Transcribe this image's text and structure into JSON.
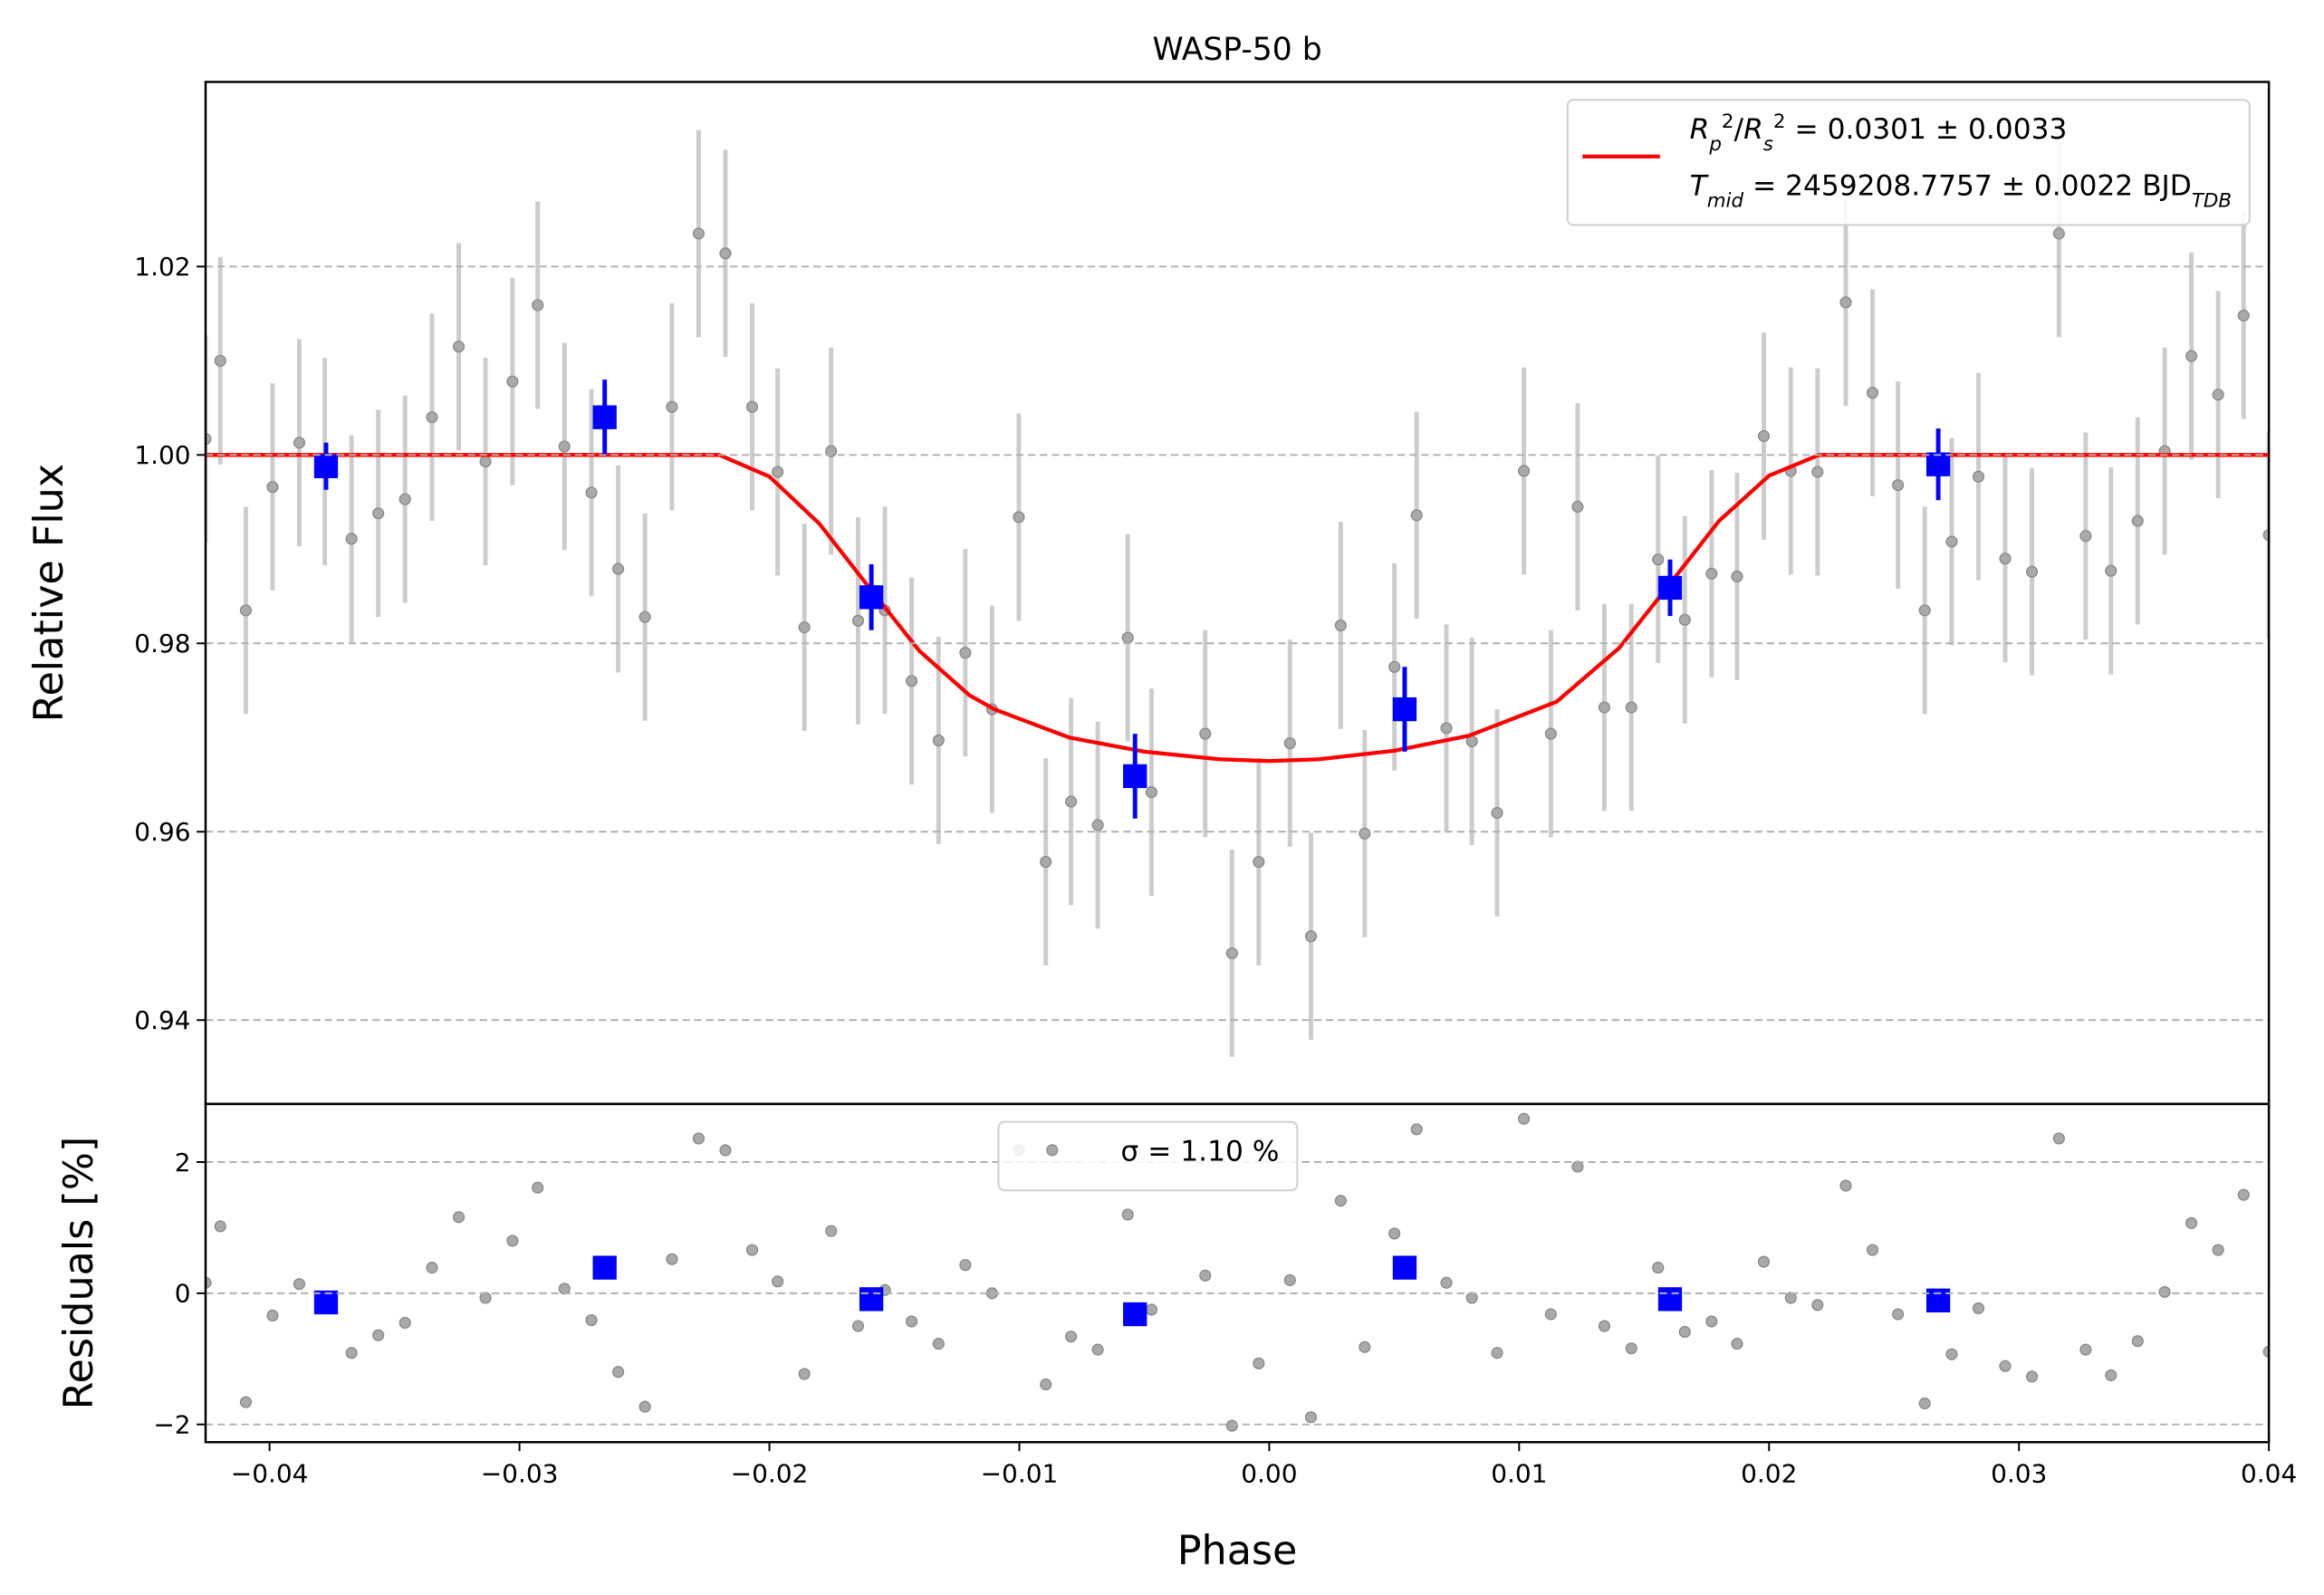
{
  "chart_data": [
    {
      "type": "scatter",
      "title": "WASP-50 b",
      "y_label": "Relative Flux",
      "xlim": [
        -0.04256,
        0.04
      ],
      "ylim": [
        0.9311,
        1.0396
      ],
      "yticks": [
        0.94,
        0.96,
        0.98,
        {
          "value": 1.0,
          "label": "1.00"
        },
        1.02
      ],
      "grid": true,
      "legend": "upper right",
      "series": [
        {
          "marker": "circle",
          "color": "#a9a9a9",
          "error_color": "#cccccc",
          "error": 0.011,
          "x": [
            -0.04256,
            -0.04197,
            -0.04095,
            -0.03988,
            -0.03881,
            -0.03779,
            -0.03672,
            -0.03565,
            -0.03458,
            -0.0335,
            -0.03243,
            -0.03136,
            -0.03028,
            -0.02927,
            -0.0282,
            -0.02712,
            -0.02605,
            -0.02498,
            -0.0239,
            -0.02283,
            -0.02176,
            -0.02069,
            -0.01967,
            -0.0186,
            -0.01753,
            -0.01645,
            -0.01538,
            -0.01431,
            -0.01323,
            -0.01216,
            -0.01109,
            -0.01002,
            -0.00894,
            -0.00793,
            -0.00686,
            -0.00566,
            -0.00471,
            -0.00256,
            -0.00149,
            -0.00042,
            0.00083,
            0.00167,
            0.00286,
            0.00382,
            0.00501,
            0.0059,
            0.00709,
            0.00811,
            0.00912,
            0.01019,
            0.01127,
            0.01234,
            0.01341,
            0.01449,
            0.01556,
            0.01663,
            0.0177,
            0.01872,
            0.01979,
            0.02087,
            0.02194,
            0.02307,
            0.02414,
            0.02516,
            0.02623,
            0.02731,
            0.02838,
            0.02945,
            0.03052,
            0.0316,
            0.03267,
            0.03368,
            0.03475,
            0.03583,
            0.0369,
            0.03797,
            0.03899,
            0.04
          ],
          "values": [
            1.0017,
            1.01,
            0.9835,
            0.9966,
            1.0013,
            0.9993,
            0.9911,
            0.9938,
            0.9953,
            1.004,
            1.0115,
            0.9993,
            1.0078,
            1.0159,
            1.0009,
            0.996,
            0.9879,
            0.9828,
            1.0051,
            1.0235,
            1.0214,
            1.0051,
            0.9982,
            0.9817,
            1.0004,
            0.9824,
            0.9835,
            0.976,
            0.9697,
            0.979,
            0.973,
            0.9934,
            0.9568,
            0.9632,
            0.9607,
            0.9806,
            0.9642,
            0.9704,
            0.9471,
            0.9568,
            0.9694,
            0.9489,
            0.9819,
            0.9598,
            0.9775,
            0.9936,
            0.971,
            0.9696,
            0.962,
            0.9983,
            0.9704,
            0.9945,
            0.9732,
            0.9732,
            0.9889,
            0.9825,
            0.9874,
            0.9871,
            1.002,
            0.9983,
            0.9982,
            1.0162,
            1.0066,
            0.9968,
            0.9835,
            0.9908,
            0.9977,
            0.989,
            0.9876,
            1.0235,
            0.9914,
            0.9877,
            0.993,
            1.0004,
            1.0105,
            1.0064,
            1.0148,
            0.9915
          ]
        },
        {
          "marker": "line",
          "color": "#ff0000",
          "name": [
            [
              {
                "text": "R",
                "italic": true
              },
              {
                "text": "p",
                "italic": true,
                "shift": "sub"
              },
              {
                "text": "2",
                "shift": "super"
              },
              {
                "text": "/"
              },
              {
                "text": "R",
                "italic": true
              },
              {
                "text": "s",
                "italic": true,
                "shift": "sub"
              },
              {
                "text": "2",
                "shift": "super"
              },
              {
                "text": " = 0.0301 ± 0.0033"
              }
            ],
            [
              {
                "text": "T",
                "italic": true
              },
              {
                "text": "mid",
                "italic": true,
                "shift": "sub"
              },
              {
                "text": " = 2459208.7757 ± 0.0022 BJD"
              },
              {
                "text": "TDB",
                "italic": true,
                "shift": "sub"
              }
            ]
          ],
          "x": [
            -0.04256,
            -0.022,
            -0.02,
            -0.018,
            -0.016,
            -0.014,
            -0.012,
            -0.011,
            -0.008,
            -0.005,
            -0.002,
            0,
            0.002,
            0.005,
            0.008,
            0.0115,
            0.014,
            0.016,
            0.018,
            0.02,
            0.022,
            0.04
          ],
          "values": [
            1.0,
            1.0,
            0.9977,
            0.9927,
            0.9859,
            0.9792,
            0.9745,
            0.973,
            0.97,
            0.9685,
            0.9677,
            0.9675,
            0.9677,
            0.9686,
            0.9702,
            0.9738,
            0.9795,
            0.9862,
            0.993,
            0.9978,
            1.0,
            1.0
          ]
        },
        {
          "marker": "square",
          "color": "#0000ff",
          "x": [
            -0.03774,
            -0.02659,
            -0.01592,
            -0.00537,
            0.00542,
            0.01604,
            0.02677
          ],
          "values": [
            0.9988,
            1.004,
            0.9849,
            0.9659,
            0.973,
            0.9859,
            0.999
          ],
          "errors": [
            0.0025,
            0.004,
            0.0035,
            0.0045,
            0.0045,
            0.003,
            0.0038
          ]
        }
      ]
    },
    {
      "type": "scatter",
      "y_label": "Residuals [%]",
      "x_label": "Phase",
      "xlim": [
        -0.04256,
        0.04
      ],
      "ylim": [
        -2.27,
        2.886
      ],
      "xticks": [
        {
          "value": -0.04,
          "label": "−0.04"
        },
        {
          "value": -0.03,
          "label": "−0.03"
        },
        {
          "value": -0.02,
          "label": "−0.02"
        },
        {
          "value": -0.01,
          "label": "−0.01"
        },
        {
          "value": 0,
          "label": "0.00"
        },
        0.01,
        0.02,
        0.03,
        0.04
      ],
      "yticks": [
        {
          "value": -2,
          "label": "−2"
        },
        0,
        2
      ],
      "grid": true,
      "legend": "upper center",
      "series": [
        {
          "marker": "circle",
          "color": "#a9a9a9",
          "name": "σ = 1.10 %",
          "x": [
            -0.04256,
            -0.04197,
            -0.04095,
            -0.03988,
            -0.03881,
            -0.03779,
            -0.03672,
            -0.03565,
            -0.03458,
            -0.0335,
            -0.03243,
            -0.03136,
            -0.03028,
            -0.02927,
            -0.0282,
            -0.02712,
            -0.02605,
            -0.02498,
            -0.0239,
            -0.02283,
            -0.02176,
            -0.02069,
            -0.01967,
            -0.0186,
            -0.01753,
            -0.01645,
            -0.01538,
            -0.01431,
            -0.01323,
            -0.01216,
            -0.01109,
            -0.01002,
            -0.00894,
            -0.00793,
            -0.00686,
            -0.00566,
            -0.00471,
            -0.00256,
            -0.00149,
            -0.00042,
            0.00083,
            0.00167,
            0.00286,
            0.00382,
            0.00501,
            0.0059,
            0.00709,
            0.00811,
            0.00912,
            0.01019,
            0.01127,
            0.01234,
            0.01341,
            0.01449,
            0.01556,
            0.01663,
            0.0177,
            0.01872,
            0.01979,
            0.02087,
            0.02194,
            0.02307,
            0.02414,
            0.02516,
            0.02623,
            0.02731,
            0.02838,
            0.02945,
            0.03052,
            0.0316,
            0.03267,
            0.03368,
            0.03475,
            0.03583,
            0.0369,
            0.03797,
            0.03899,
            0.04
          ],
          "values": [
            0.16,
            1.02,
            -1.66,
            -0.34,
            0.14,
            -0.1,
            -0.91,
            -0.64,
            -0.45,
            0.39,
            1.16,
            -0.07,
            0.8,
            1.61,
            0.07,
            -0.41,
            -1.2,
            -1.73,
            0.52,
            2.36,
            2.18,
            0.66,
            0.18,
            -1.23,
            0.95,
            -0.5,
            0.05,
            -0.43,
            -0.77,
            0.43,
            0,
            2.18,
            -1.39,
            -0.66,
            -0.86,
            1.2,
            -0.25,
            0.27,
            -2.02,
            -1.07,
            0.2,
            -1.89,
            1.41,
            -0.82,
            0.91,
            2.5,
            0.16,
            -0.07,
            -0.91,
            2.66,
            -0.32,
            1.93,
            -0.5,
            -0.84,
            0.39,
            -0.59,
            -0.43,
            -0.77,
            0.48,
            -0.07,
            -0.18,
            1.64,
            0.66,
            -0.32,
            -1.68,
            -0.93,
            -0.23,
            -1.11,
            -1.27,
            2.36,
            -0.86,
            -1.25,
            -0.73,
            0.02,
            1.07,
            0.66,
            1.5,
            -0.89
          ]
        },
        {
          "marker": "square",
          "color": "#0000ff",
          "x": [
            -0.03774,
            -0.02659,
            -0.01592,
            -0.00537,
            0.00542,
            0.01604,
            0.02677
          ],
          "values": [
            -0.14,
            0.39,
            -0.09,
            -0.32,
            0.39,
            -0.09,
            -0.11
          ]
        }
      ]
    }
  ]
}
